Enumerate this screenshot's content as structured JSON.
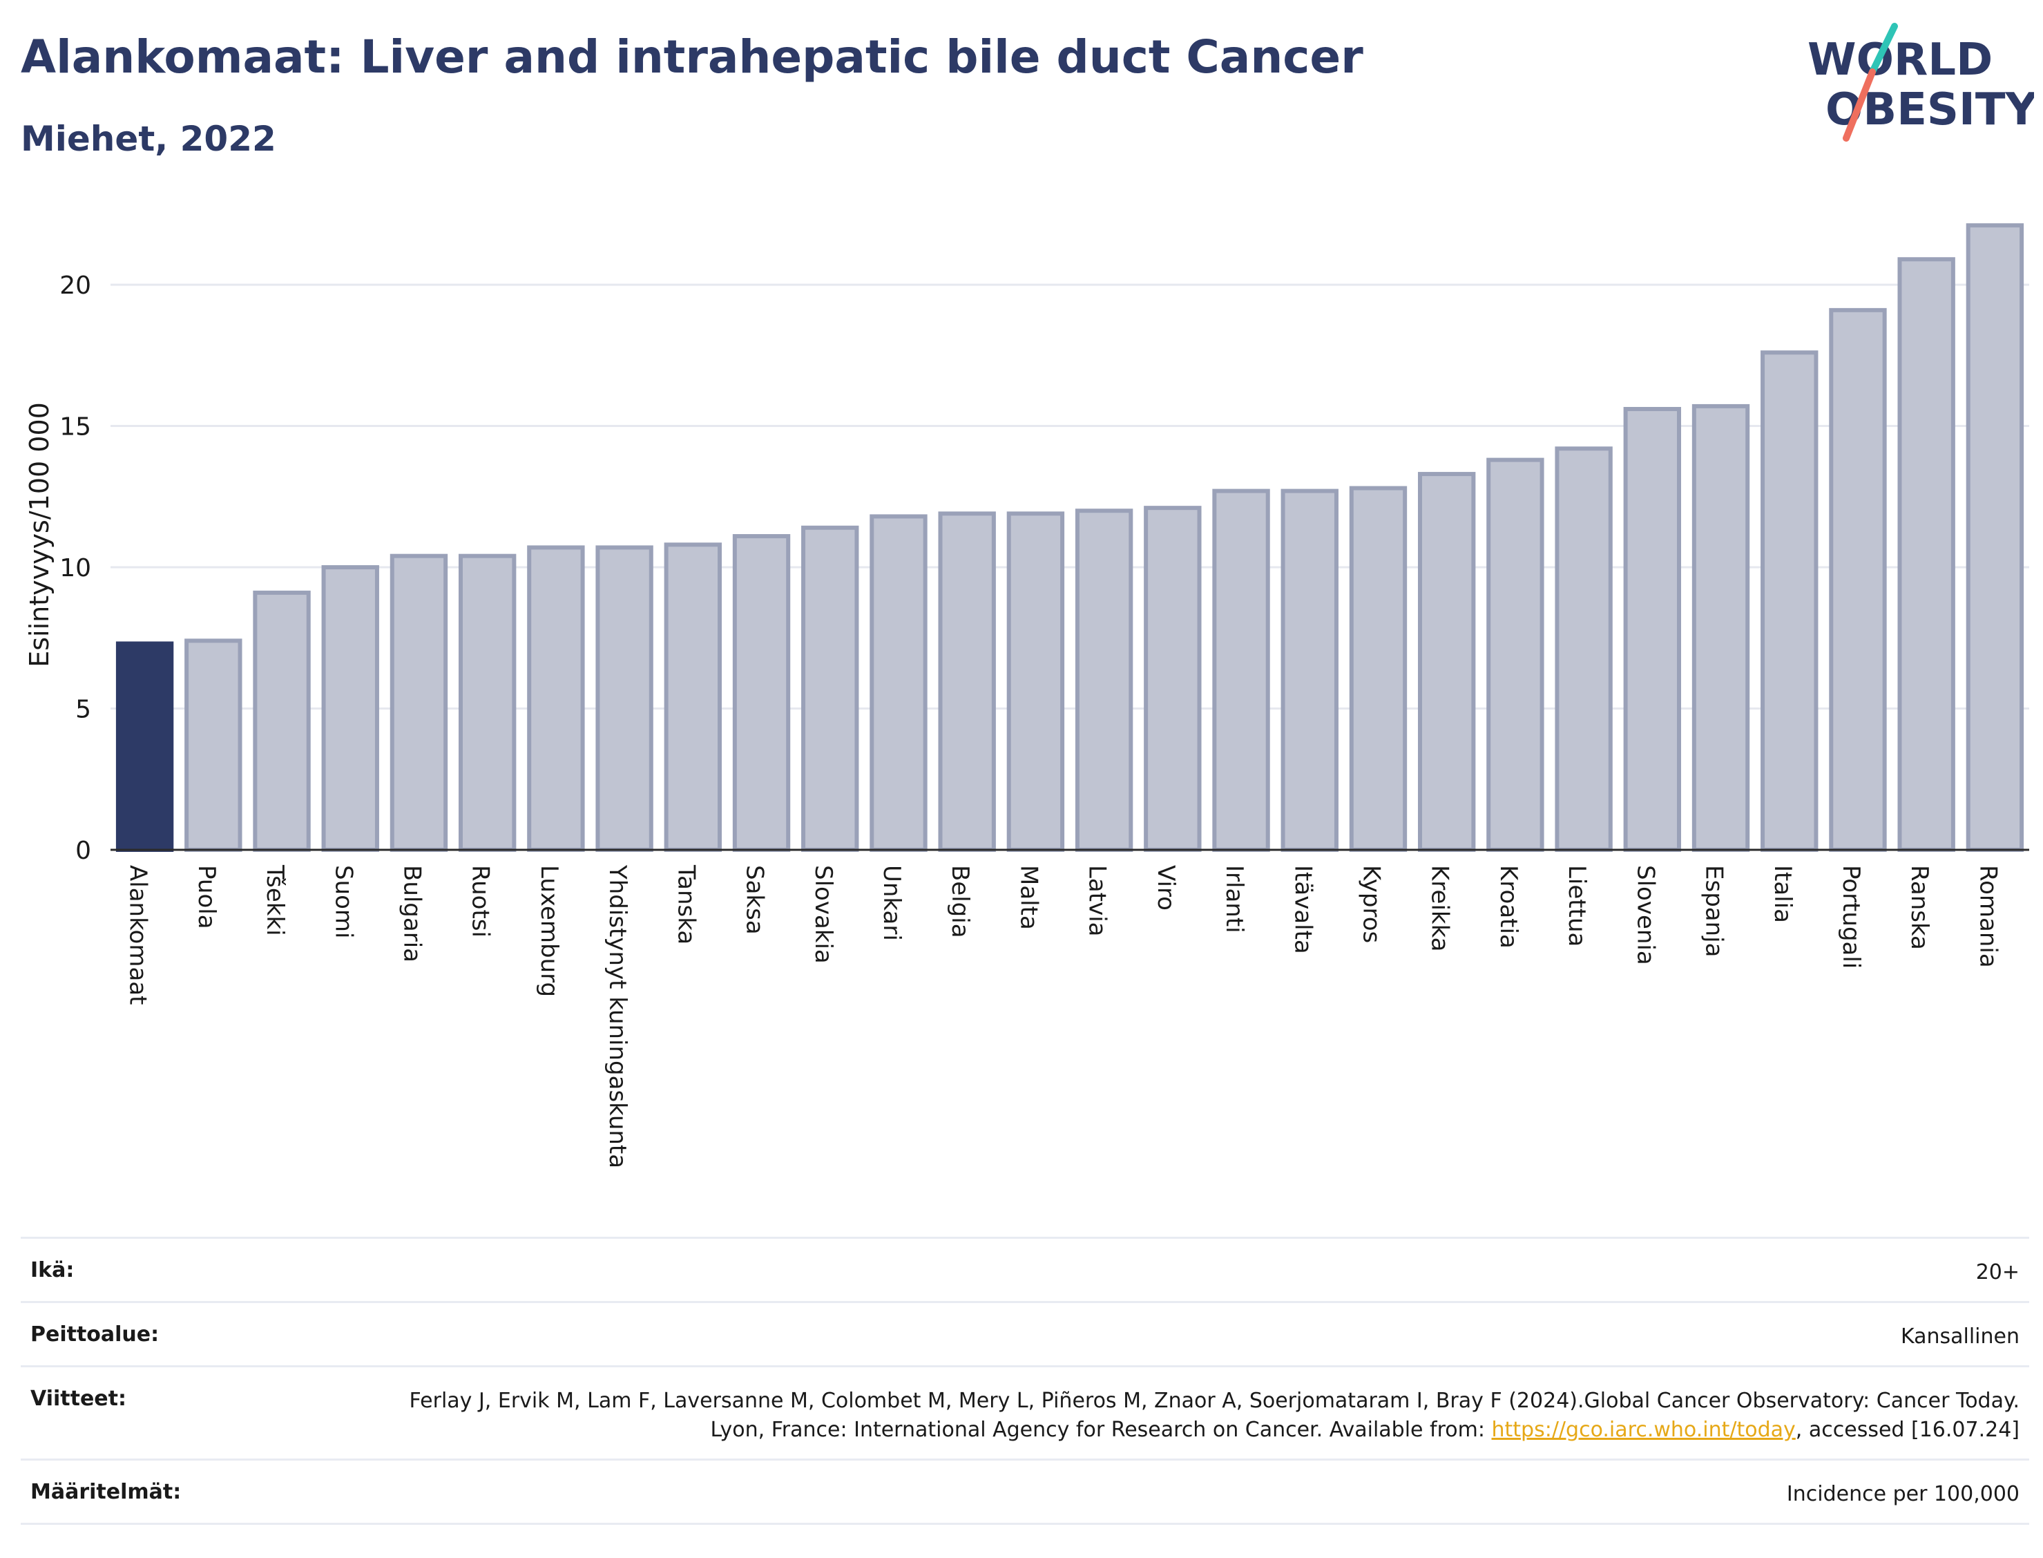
{
  "header": {
    "title": "Alankomaat: Liver and intrahepatic bile duct Cancer",
    "subtitle": "Miehet, 2022"
  },
  "logo": {
    "line1": "WORLD",
    "line2": "OBESITY"
  },
  "colors": {
    "highlight": "#2d3a66",
    "bar_fill": "#c0c4d2",
    "bar_stroke": "#9aa1b8",
    "title": "#2d3a66",
    "link": "#e6a817"
  },
  "chart_data": {
    "type": "bar",
    "ylabel": "Esiintyvyys/100 000",
    "ylim": [
      0,
      22.3
    ],
    "yticks": [
      0,
      5,
      10,
      15,
      20
    ],
    "grid": true,
    "highlight_category": "Alankomaat",
    "categories": [
      "Alankomaat",
      "Puola",
      "Tšekki",
      "Suomi",
      "Bulgaria",
      "Ruotsi",
      "Luxemburg",
      "Yhdistynyt kuningaskunta",
      "Tanska",
      "Saksa",
      "Slovakia",
      "Unkari",
      "Belgia",
      "Malta",
      "Latvia",
      "Viro",
      "Irlanti",
      "Itävalta",
      "Kypros",
      "Kreikka",
      "Kroatia",
      "Liettua",
      "Slovenia",
      "Espanja",
      "Italia",
      "Portugali",
      "Ranska",
      "Romania"
    ],
    "values": [
      7.3,
      7.4,
      9.1,
      10.0,
      10.4,
      10.4,
      10.7,
      10.7,
      10.8,
      11.1,
      11.4,
      11.8,
      11.9,
      11.9,
      12.0,
      12.1,
      12.7,
      12.7,
      12.8,
      13.3,
      13.8,
      14.2,
      15.6,
      15.7,
      17.6,
      19.1,
      20.9,
      22.1
    ]
  },
  "info": {
    "age_label": "Ikä:",
    "age_value": "20+",
    "coverage_label": "Peittoalue:",
    "coverage_value": "Kansallinen",
    "refs_label": "Viitteet:",
    "refs_text_1": "Ferlay J, Ervik M, Lam F, Laversanne M, Colombet M, Mery L, Piñeros M, Znaor A, Soerjomataram I, Bray F (2024).Global Cancer Observatory: Cancer Today. Lyon, France: International Agency for Research on Cancer. Available from: ",
    "refs_link": "https://gco.iarc.who.int/today",
    "refs_text_2": ", accessed [16.07.24]",
    "defs_label": "Määritelmät:",
    "defs_value": "Incidence per 100,000"
  }
}
